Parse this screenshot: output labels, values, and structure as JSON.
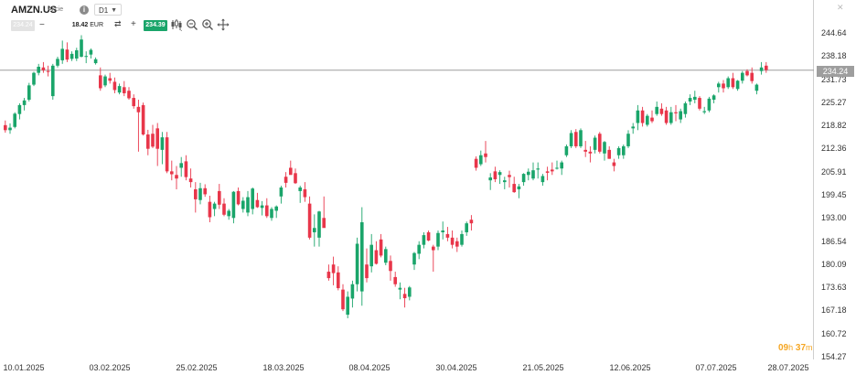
{
  "header": {
    "symbol": "AMZN.US",
    "instrument_type": "Akcie",
    "timeframe": "D1",
    "close_glyph": "✕"
  },
  "order_panel": {
    "sell_price": "234.24",
    "minus_glyph": "−",
    "volume_value": "18.42",
    "volume_currency": "EUR",
    "plus_glyph": "+",
    "buy_price": "234.39"
  },
  "tools": [
    "candlestick-chart-icon",
    "zoom-out-icon",
    "zoom-in-icon",
    "move-icon"
  ],
  "price_axis": {
    "ticks": [
      "244.64",
      "238.18",
      "231.73",
      "225.27",
      "218.82",
      "212.36",
      "205.91",
      "199.45",
      "193.00",
      "186.54",
      "180.09",
      "173.63",
      "167.18",
      "160.72",
      "154.27"
    ],
    "current_price": "234.24"
  },
  "date_axis": {
    "ticks": [
      "10.01.2025",
      "03.02.2025",
      "25.02.2025",
      "18.03.2025",
      "08.04.2025",
      "30.04.2025",
      "21.05.2025",
      "12.06.2025",
      "07.07.2025",
      "28.07.2025"
    ]
  },
  "countdown": {
    "hours": "09",
    "hours_unit": "h",
    "minutes": "37",
    "minutes_unit": "m"
  },
  "colors": {
    "up": "#1aa56a",
    "down": "#e8364a",
    "price_line": "#9e9e9e"
  },
  "chart_data": {
    "type": "candlestick",
    "title": "",
    "xlabel": "",
    "ylabel": "",
    "ylim": [
      154.27,
      247.0
    ],
    "candles": [
      [
        218.9,
        220.2,
        216.8,
        217.5
      ],
      [
        217.5,
        219.4,
        216.5,
        218.2
      ],
      [
        218.4,
        222.5,
        218.0,
        222.1
      ],
      [
        222.0,
        225.0,
        220.5,
        224.5
      ],
      [
        224.5,
        226.5,
        223.0,
        225.8
      ],
      [
        226.0,
        230.7,
        225.5,
        230.0
      ],
      [
        230.2,
        233.8,
        229.8,
        233.5
      ],
      [
        233.5,
        236.0,
        232.8,
        235.2
      ],
      [
        235.0,
        236.5,
        233.5,
        234.2
      ],
      [
        234.0,
        235.5,
        232.5,
        233.8
      ],
      [
        227.0,
        236.0,
        226.0,
        235.5
      ],
      [
        235.5,
        238.0,
        235.0,
        237.4
      ],
      [
        237.0,
        242.5,
        236.0,
        240.2
      ],
      [
        240.0,
        242.0,
        236.5,
        237.2
      ],
      [
        237.4,
        239.5,
        236.8,
        238.8
      ],
      [
        237.5,
        240.5,
        236.8,
        239.8
      ],
      [
        238.0,
        244.0,
        237.8,
        242.8
      ],
      [
        238.0,
        239.5,
        236.2,
        238.2
      ],
      [
        238.6,
        240.3,
        237.5,
        239.9
      ],
      [
        236.2,
        237.8,
        235.8,
        237.3
      ],
      [
        232.8,
        235.0,
        228.5,
        229.2
      ],
      [
        230.0,
        233.0,
        229.5,
        232.5
      ],
      [
        232.0,
        233.5,
        230.5,
        231.3
      ],
      [
        231.0,
        232.2,
        227.8,
        228.7
      ],
      [
        228.0,
        230.5,
        227.5,
        229.8
      ],
      [
        229.5,
        231.2,
        227.0,
        227.8
      ],
      [
        228.5,
        229.5,
        226.0,
        226.4
      ],
      [
        226.5,
        227.5,
        223.5,
        224.2
      ],
      [
        224.0,
        226.0,
        211.5,
        222.5
      ],
      [
        224.5,
        225.2,
        216.0,
        216.3
      ],
      [
        216.3,
        217.6,
        210.5,
        212.3
      ],
      [
        216.5,
        219.0,
        212.5,
        212.9
      ],
      [
        218.0,
        219.5,
        207.5,
        212.3
      ],
      [
        212.0,
        217.0,
        208.0,
        215.5
      ],
      [
        215.5,
        217.0,
        205.5,
        206.0
      ],
      [
        206.0,
        209.0,
        203.5,
        205.2
      ],
      [
        205.0,
        207.5,
        201.0,
        204.0
      ],
      [
        207.0,
        210.0,
        204.5,
        208.3
      ],
      [
        208.8,
        210.5,
        203.5,
        204.4
      ],
      [
        204.0,
        206.8,
        201.5,
        203.0
      ],
      [
        201.0,
        203.0,
        194.5,
        198.2
      ],
      [
        198.0,
        202.8,
        196.8,
        201.3
      ],
      [
        201.3,
        202.4,
        198.9,
        199.6
      ],
      [
        197.5,
        199.2,
        191.8,
        193.2
      ],
      [
        195.5,
        197.5,
        193.5,
        197.0
      ],
      [
        200.5,
        202.5,
        195.5,
        196.7
      ],
      [
        197.0,
        198.5,
        193.5,
        193.9
      ],
      [
        193.5,
        195.5,
        192.5,
        195.0
      ],
      [
        193.0,
        200.5,
        191.5,
        200.3
      ],
      [
        200.5,
        201.5,
        196.5,
        196.8
      ],
      [
        195.5,
        198.8,
        194.5,
        197.8
      ],
      [
        194.5,
        200.5,
        193.5,
        198.8
      ],
      [
        195.5,
        201.5,
        194.0,
        201.2
      ],
      [
        198.0,
        200.0,
        195.8,
        196.0
      ],
      [
        195.8,
        197.7,
        193.7,
        196.5
      ],
      [
        196.5,
        198.5,
        193.0,
        193.5
      ],
      [
        193.0,
        196.0,
        192.2,
        195.5
      ],
      [
        195.0,
        196.5,
        193.0,
        196.2
      ],
      [
        199.0,
        202.0,
        197.0,
        201.5
      ],
      [
        204.5,
        205.8,
        201.5,
        202.8
      ],
      [
        207.0,
        209.0,
        205.5,
        205.0
      ],
      [
        205.5,
        206.8,
        202.5,
        202.7
      ],
      [
        200.5,
        202.0,
        197.2,
        201.5
      ],
      [
        201.0,
        203.0,
        197.5,
        198.8
      ],
      [
        197.0,
        199.0,
        187.0,
        187.5
      ],
      [
        189.0,
        194.0,
        185.0,
        190.2
      ],
      [
        187.5,
        195.0,
        185.0,
        194.8
      ],
      [
        193.0,
        199.0,
        190.5,
        190.2
      ],
      [
        178.0,
        180.0,
        175.5,
        176.2
      ],
      [
        180.0,
        182.2,
        174.2,
        177.6
      ],
      [
        177.8,
        179.5,
        172.8,
        173.4
      ],
      [
        173.0,
        174.5,
        167.0,
        167.5
      ],
      [
        166.0,
        172.5,
        165.0,
        171.0
      ],
      [
        170.5,
        175.5,
        168.0,
        174.5
      ],
      [
        174.5,
        187.5,
        172.5,
        185.8
      ],
      [
        172.5,
        196.0,
        168.5,
        191.8
      ],
      [
        180.0,
        184.5,
        175.0,
        176.2
      ],
      [
        179.5,
        188.5,
        177.8,
        185.5
      ],
      [
        184.0,
        186.5,
        180.0,
        180.2
      ],
      [
        187.0,
        188.5,
        182.0,
        182.5
      ],
      [
        180.5,
        185.0,
        179.8,
        184.3
      ],
      [
        181.0,
        182.5,
        175.5,
        178.2
      ],
      [
        176.5,
        178.0,
        173.8,
        174.5
      ],
      [
        173.0,
        175.0,
        170.3,
        173.5
      ],
      [
        171.8,
        173.5,
        168.0,
        170.6
      ],
      [
        171.0,
        174.0,
        170.0,
        173.6
      ],
      [
        180.0,
        183.5,
        178.5,
        183.2
      ],
      [
        183.0,
        186.5,
        181.5,
        185.5
      ],
      [
        185.5,
        189.0,
        184.5,
        188.2
      ],
      [
        189.0,
        189.5,
        186.5,
        186.7
      ],
      [
        185.0,
        185.5,
        178.0,
        184.0
      ],
      [
        185.0,
        189.5,
        184.0,
        188.8
      ],
      [
        189.0,
        192.0,
        187.0,
        189.5
      ],
      [
        188.5,
        190.5,
        186.5,
        187.5
      ],
      [
        187.5,
        189.5,
        184.5,
        185.5
      ],
      [
        186.5,
        187.5,
        183.5,
        185.0
      ],
      [
        185.5,
        189.5,
        185.0,
        188.5
      ],
      [
        189.0,
        192.0,
        188.0,
        191.5
      ],
      [
        192.5,
        193.8,
        189.5,
        191.5
      ],
      [
        209.5,
        210.2,
        206.2,
        207.0
      ],
      [
        208.0,
        211.8,
        207.5,
        210.5
      ],
      [
        211.0,
        214.5,
        208.5,
        210.0
      ],
      [
        203.5,
        205.5,
        200.8,
        204.3
      ],
      [
        206.0,
        207.3,
        203.0,
        203.8
      ],
      [
        205.0,
        206.3,
        202.5,
        205.8
      ],
      [
        203.0,
        204.5,
        201.0,
        203.5
      ],
      [
        205.0,
        206.2,
        201.5,
        204.4
      ],
      [
        202.5,
        204.5,
        200.0,
        200.2
      ],
      [
        201.0,
        202.5,
        198.5,
        201.8
      ],
      [
        203.0,
        205.5,
        202.0,
        205.3
      ],
      [
        205.0,
        206.8,
        203.5,
        205.9
      ],
      [
        204.0,
        208.5,
        203.5,
        206.3
      ],
      [
        206.5,
        208.5,
        204.0,
        206.8
      ],
      [
        203.0,
        205.3,
        202.0,
        204.7
      ],
      [
        206.0,
        207.3,
        203.5,
        205.6
      ],
      [
        206.5,
        208.5,
        205.0,
        206.0
      ],
      [
        207.0,
        209.0,
        206.5,
        207.0
      ],
      [
        206.8,
        209.0,
        205.0,
        208.5
      ],
      [
        210.5,
        213.5,
        210.0,
        213.0
      ],
      [
        213.0,
        217.5,
        212.5,
        216.7
      ],
      [
        217.0,
        217.8,
        212.5,
        213.0
      ],
      [
        213.0,
        218.0,
        212.5,
        217.5
      ],
      [
        212.0,
        214.5,
        210.0,
        211.5
      ],
      [
        211.5,
        213.0,
        208.5,
        211.0
      ],
      [
        212.0,
        216.0,
        211.0,
        215.4
      ],
      [
        216.5,
        217.0,
        211.0,
        211.5
      ],
      [
        211.0,
        214.5,
        209.0,
        214.2
      ],
      [
        212.0,
        213.0,
        209.5,
        209.5
      ],
      [
        208.5,
        209.5,
        206.0,
        207.5
      ],
      [
        210.5,
        213.0,
        209.5,
        212.5
      ],
      [
        210.5,
        213.5,
        209.5,
        213.0
      ],
      [
        213.0,
        217.5,
        212.5,
        216.5
      ],
      [
        218.0,
        219.5,
        216.5,
        218.5
      ],
      [
        219.5,
        224.5,
        217.5,
        223.0
      ],
      [
        223.0,
        224.0,
        218.5,
        219.5
      ],
      [
        219.0,
        222.0,
        218.5,
        221.5
      ],
      [
        221.0,
        223.0,
        219.5,
        220.0
      ],
      [
        222.0,
        225.5,
        221.5,
        224.0
      ],
      [
        223.5,
        225.0,
        221.5,
        222.0
      ],
      [
        223.0,
        224.0,
        219.0,
        219.5
      ],
      [
        219.5,
        224.0,
        219.0,
        222.5
      ],
      [
        222.5,
        224.5,
        220.0,
        222.2
      ],
      [
        220.5,
        223.5,
        219.5,
        222.8
      ],
      [
        222.0,
        225.5,
        221.0,
        225.0
      ],
      [
        225.5,
        227.5,
        224.5,
        226.5
      ],
      [
        226.0,
        228.5,
        225.0,
        226.8
      ],
      [
        226.5,
        227.0,
        223.0,
        223.5
      ],
      [
        222.5,
        224.0,
        222.0,
        222.8
      ],
      [
        223.0,
        226.8,
        222.5,
        226.3
      ],
      [
        226.0,
        227.5,
        225.0,
        227.2
      ],
      [
        229.5,
        231.0,
        228.0,
        230.5
      ],
      [
        230.5,
        231.5,
        228.0,
        229.2
      ],
      [
        229.5,
        232.5,
        229.0,
        232.0
      ],
      [
        232.0,
        233.5,
        229.0,
        229.5
      ],
      [
        229.0,
        231.5,
        228.5,
        231.3
      ],
      [
        231.3,
        234.0,
        230.5,
        233.5
      ],
      [
        234.0,
        234.5,
        232.5,
        232.8
      ],
      [
        233.5,
        235.0,
        230.5,
        231.2
      ],
      [
        228.5,
        230.5,
        227.5,
        230.2
      ],
      [
        234.0,
        236.5,
        233.0,
        235.0
      ],
      [
        235.5,
        236.5,
        233.5,
        234.3
      ]
    ]
  }
}
